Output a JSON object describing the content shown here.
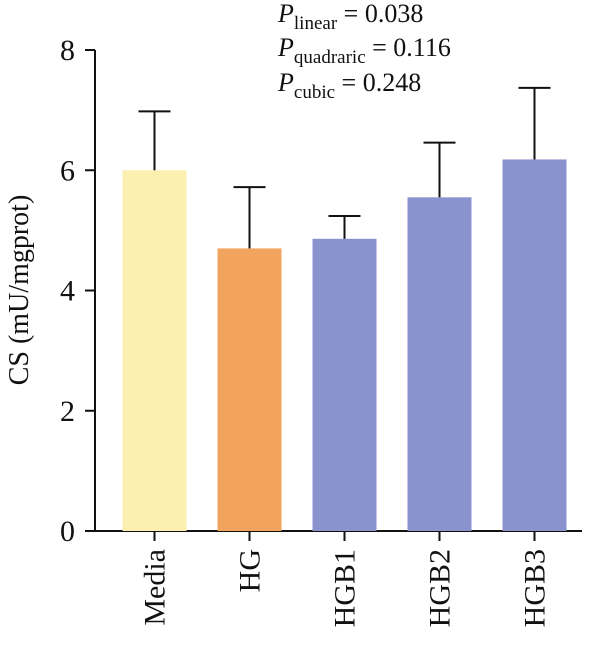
{
  "chart_data": {
    "type": "bar",
    "title": "",
    "xlabel": "",
    "ylabel": "CS (mU/mgprot)",
    "ylim": [
      0,
      8
    ],
    "yticks": [
      0,
      2,
      4,
      6,
      8
    ],
    "categories": [
      "Media",
      "HG",
      "HGB1",
      "HGB2",
      "HGB3"
    ],
    "values": [
      6.0,
      4.7,
      4.86,
      5.55,
      6.18
    ],
    "error_upper": [
      0.98,
      1.02,
      0.38,
      0.91,
      1.19
    ],
    "bar_colors": [
      "#FBF0B0",
      "#F2A35E",
      "#8B93CF",
      "#8B93CF",
      "#8B93CF"
    ],
    "annotations": [
      {
        "sub": "linear",
        "value": "= 0.038"
      },
      {
        "sub": "quadraric",
        "value": "= 0.116"
      },
      {
        "sub": "cubic",
        "value": "= 0.248"
      }
    ],
    "annotation_symbol": "P",
    "grid": false
  }
}
